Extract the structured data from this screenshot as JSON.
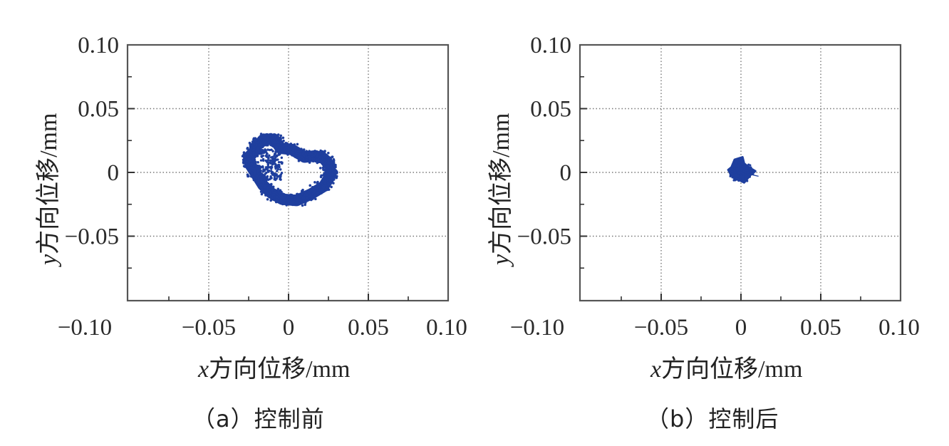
{
  "figure": {
    "panels": [
      {
        "id": "a",
        "caption": "（a）控制前",
        "xlabel_var": "x",
        "xlabel_rest": "方向位移/mm",
        "ylabel_var": "y",
        "ylabel_rest": "方向位移/mm",
        "xticks": [
          "−0.10",
          "−0.05",
          "0",
          "0.05",
          "0.10"
        ],
        "yticks": [
          "0.10",
          "0.05",
          "0",
          "−0.05"
        ]
      },
      {
        "id": "b",
        "caption": "（b）控制后",
        "xlabel_var": "x",
        "xlabel_rest": "方向位移/mm",
        "ylabel_var": "y",
        "ylabel_rest": "方向位移/mm",
        "xticks": [
          "−0.10",
          "−0.05",
          "0",
          "0.05",
          "0.10"
        ],
        "yticks": [
          "0.10",
          "0.05",
          "0",
          "−0.05"
        ]
      }
    ],
    "colors": {
      "points": "#1f3f9e",
      "frame": "#555555",
      "grid": "#777777"
    }
  },
  "chart_data": [
    {
      "type": "scatter",
      "title": "（a）控制前",
      "xlabel": "x方向位移/mm",
      "ylabel": "y方向位移/mm",
      "xlim": [
        -0.1,
        0.1
      ],
      "ylim": [
        -0.1,
        0.1
      ],
      "xticks": [
        -0.1,
        -0.05,
        0,
        0.05,
        0.1
      ],
      "yticks": [
        0.1,
        0.05,
        0,
        -0.05
      ],
      "grid": true,
      "series": [
        {
          "name": "orbit before control",
          "color": "#1f3f9e",
          "shape": "irregular ring (axis orbit)",
          "approx_extent": {
            "x": [
              -0.025,
              0.026
            ],
            "y": [
              -0.023,
              0.027
            ]
          },
          "outline_points": [
            [
              -0.02,
              0.021
            ],
            [
              -0.015,
              0.026
            ],
            [
              -0.009,
              0.026
            ],
            [
              -0.005,
              0.019
            ],
            [
              0.002,
              0.018
            ],
            [
              0.01,
              0.012
            ],
            [
              0.017,
              0.013
            ],
            [
              0.022,
              0.011
            ],
            [
              0.026,
              0.005
            ],
            [
              0.026,
              -0.003
            ],
            [
              0.022,
              -0.011
            ],
            [
              0.014,
              -0.017
            ],
            [
              0.005,
              -0.022
            ],
            [
              -0.004,
              -0.021
            ],
            [
              -0.011,
              -0.016
            ],
            [
              -0.016,
              -0.01
            ],
            [
              -0.02,
              -0.002
            ],
            [
              -0.024,
              0.006
            ],
            [
              -0.025,
              0.012
            ],
            [
              -0.021,
              0.017
            ]
          ]
        }
      ]
    },
    {
      "type": "scatter",
      "title": "（b）控制后",
      "xlabel": "x方向位移/mm",
      "ylabel": "y方向位移/mm",
      "xlim": [
        -0.1,
        0.1
      ],
      "ylim": [
        -0.1,
        0.1
      ],
      "xticks": [
        -0.1,
        -0.05,
        0,
        0.05,
        0.1
      ],
      "yticks": [
        0.1,
        0.05,
        0,
        -0.05
      ],
      "grid": true,
      "series": [
        {
          "name": "orbit after control",
          "color": "#1f3f9e",
          "shape": "small compact cluster",
          "approx_extent": {
            "x": [
              -0.008,
              0.01
            ],
            "y": [
              -0.008,
              0.012
            ]
          },
          "outline_points": [
            [
              -0.004,
              0.01
            ],
            [
              0.001,
              0.012
            ],
            [
              0.002,
              0.007
            ],
            [
              0.005,
              0.004
            ],
            [
              0.009,
              0.001
            ],
            [
              0.006,
              -0.002
            ],
            [
              0.004,
              -0.005
            ],
            [
              0.002,
              -0.008
            ],
            [
              -0.001,
              -0.006
            ],
            [
              -0.004,
              -0.005
            ],
            [
              -0.006,
              -0.002
            ],
            [
              -0.008,
              0.002
            ],
            [
              -0.006,
              0.004
            ],
            [
              -0.005,
              0.007
            ]
          ]
        }
      ]
    }
  ]
}
